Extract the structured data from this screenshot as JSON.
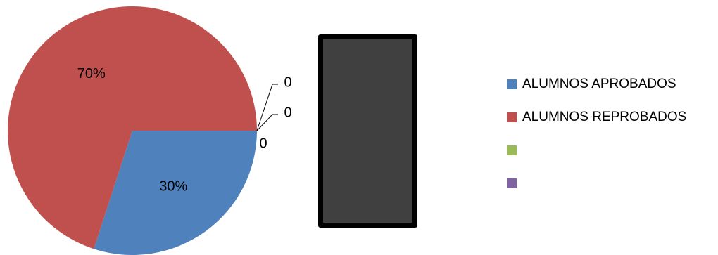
{
  "chart_data": {
    "type": "pie",
    "title": "",
    "slices": [
      {
        "label": "ALUMNOS APROBADOS",
        "value": 30,
        "display": "30%",
        "color": "#4F81BD"
      },
      {
        "label": "ALUMNOS REPROBADOS",
        "value": 70,
        "display": "70%",
        "color": "#C0504D"
      },
      {
        "label": "",
        "value": 0,
        "display": "0",
        "color": "#9BBB59"
      },
      {
        "label": "",
        "value": 0,
        "display": "0",
        "color": "#8064A2"
      }
    ],
    "extra_zero_label": "0",
    "legend_position": "right",
    "legend": [
      {
        "label": "ALUMNOS APROBADOS",
        "color": "#4F81BD"
      },
      {
        "label": "ALUMNOS REPROBADOS",
        "color": "#C0504D"
      },
      {
        "label": "",
        "color": "#9BBB59"
      },
      {
        "label": "",
        "color": "#8064A2"
      }
    ],
    "panel_color": "#404040"
  }
}
